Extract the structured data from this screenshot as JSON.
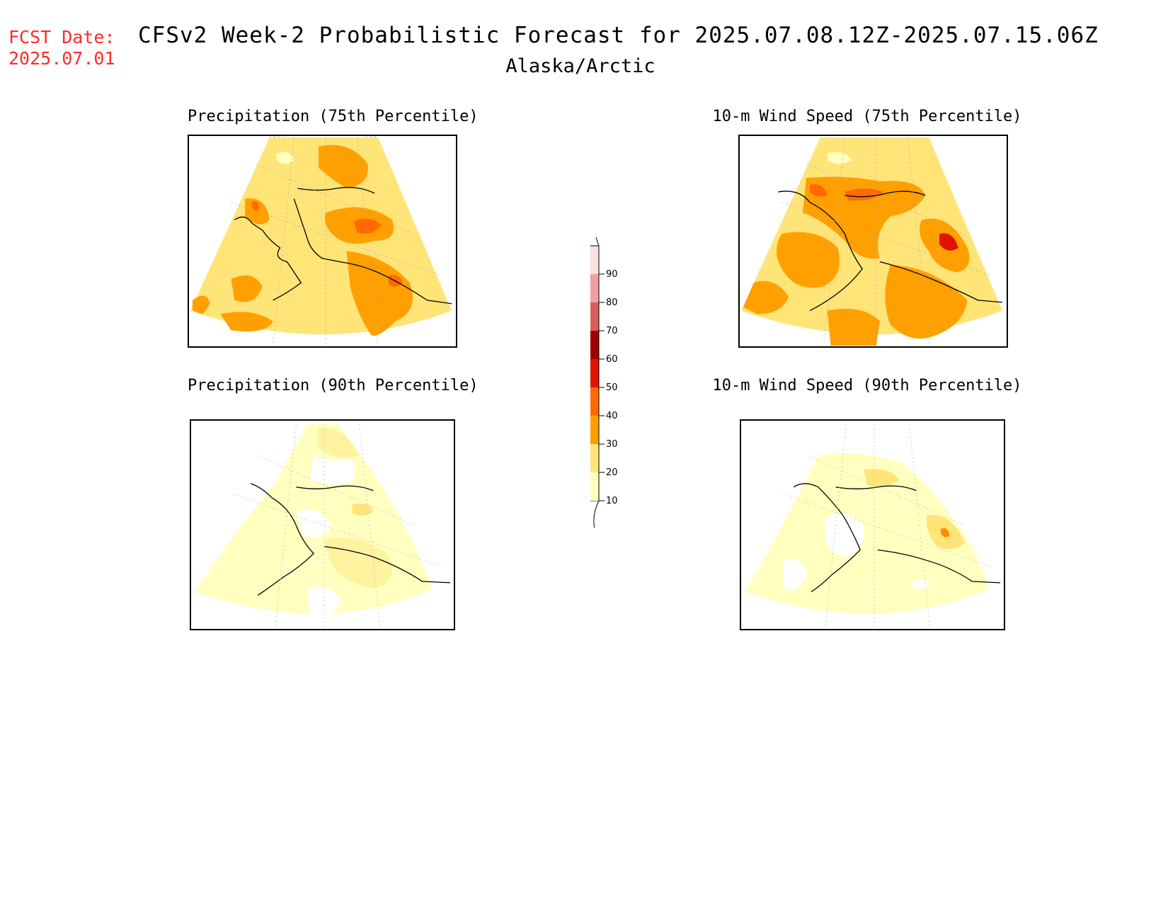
{
  "header": {
    "fcst_label": "FCST Date:",
    "fcst_date": "2025.07.01",
    "title": "CFSv2 Week-2 Probabilistic Forecast for 2025.07.08.12Z-2025.07.15.06Z",
    "subtitle": "Alaska/Arctic"
  },
  "panels": [
    {
      "title": "Precipitation (75th Percentile)"
    },
    {
      "title": "10-m Wind Speed (75th Percentile)"
    },
    {
      "title": "Precipitation (90th Percentile)"
    },
    {
      "title": "10-m Wind Speed (90th Percentile)"
    }
  ],
  "colorbar": {
    "levels": [
      10,
      20,
      30,
      40,
      50,
      60,
      70,
      80,
      90
    ],
    "labels": [
      "10",
      "20",
      "30",
      "40",
      "50",
      "60",
      "70",
      "80",
      "90"
    ],
    "colors": [
      "#ffffc0",
      "#ffe478",
      "#ffa000",
      "#ff6a00",
      "#e01400",
      "#a00000",
      "#d86060",
      "#f0a0a0",
      "#fde0e0"
    ]
  }
}
